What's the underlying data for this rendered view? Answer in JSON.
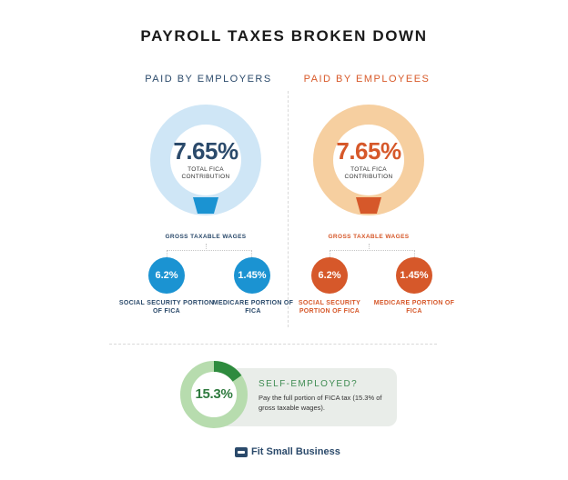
{
  "title": "PAYROLL TAXES BROKEN DOWN",
  "colors": {
    "employer_ring": "#cfe6f6",
    "employer_accent": "#1b93d2",
    "employer_text": "#2b4a6b",
    "employee_ring": "#f6cfa0",
    "employee_accent": "#d6582a",
    "employee_text": "#d85a2a",
    "self_ring": "#b7dcae",
    "self_accent": "#2e8b3e"
  },
  "employers": {
    "heading": "PAID BY EMPLOYERS",
    "total_pct": "7.65%",
    "total_label": "TOTAL FICA CONTRIBUTION",
    "base_label": "GROSS TAXABLE WAGES",
    "ss_pct": "6.2%",
    "ss_label": "SOCIAL SECURITY PORTION OF FICA",
    "medicare_pct": "1.45%",
    "medicare_label": "MEDICARE PORTION OF FICA"
  },
  "employees": {
    "heading": "PAID BY EMPLOYEES",
    "total_pct": "7.65%",
    "total_label": "TOTAL FICA CONTRIBUTION",
    "base_label": "GROSS TAXABLE WAGES",
    "ss_pct": "6.2%",
    "ss_label": "SOCIAL SECURITY PORTION OF FICA",
    "medicare_pct": "1.45%",
    "medicare_label": "MEDICARE PORTION OF FICA"
  },
  "self_employed": {
    "pct": "15.3%",
    "share": 0.153,
    "title": "SELF-EMPLOYED?",
    "text": "Pay the full portion of FICA tax (15.3% of gross taxable wages)."
  },
  "brand": {
    "name": "Fit Small Business",
    "icon": "wallet-icon"
  }
}
